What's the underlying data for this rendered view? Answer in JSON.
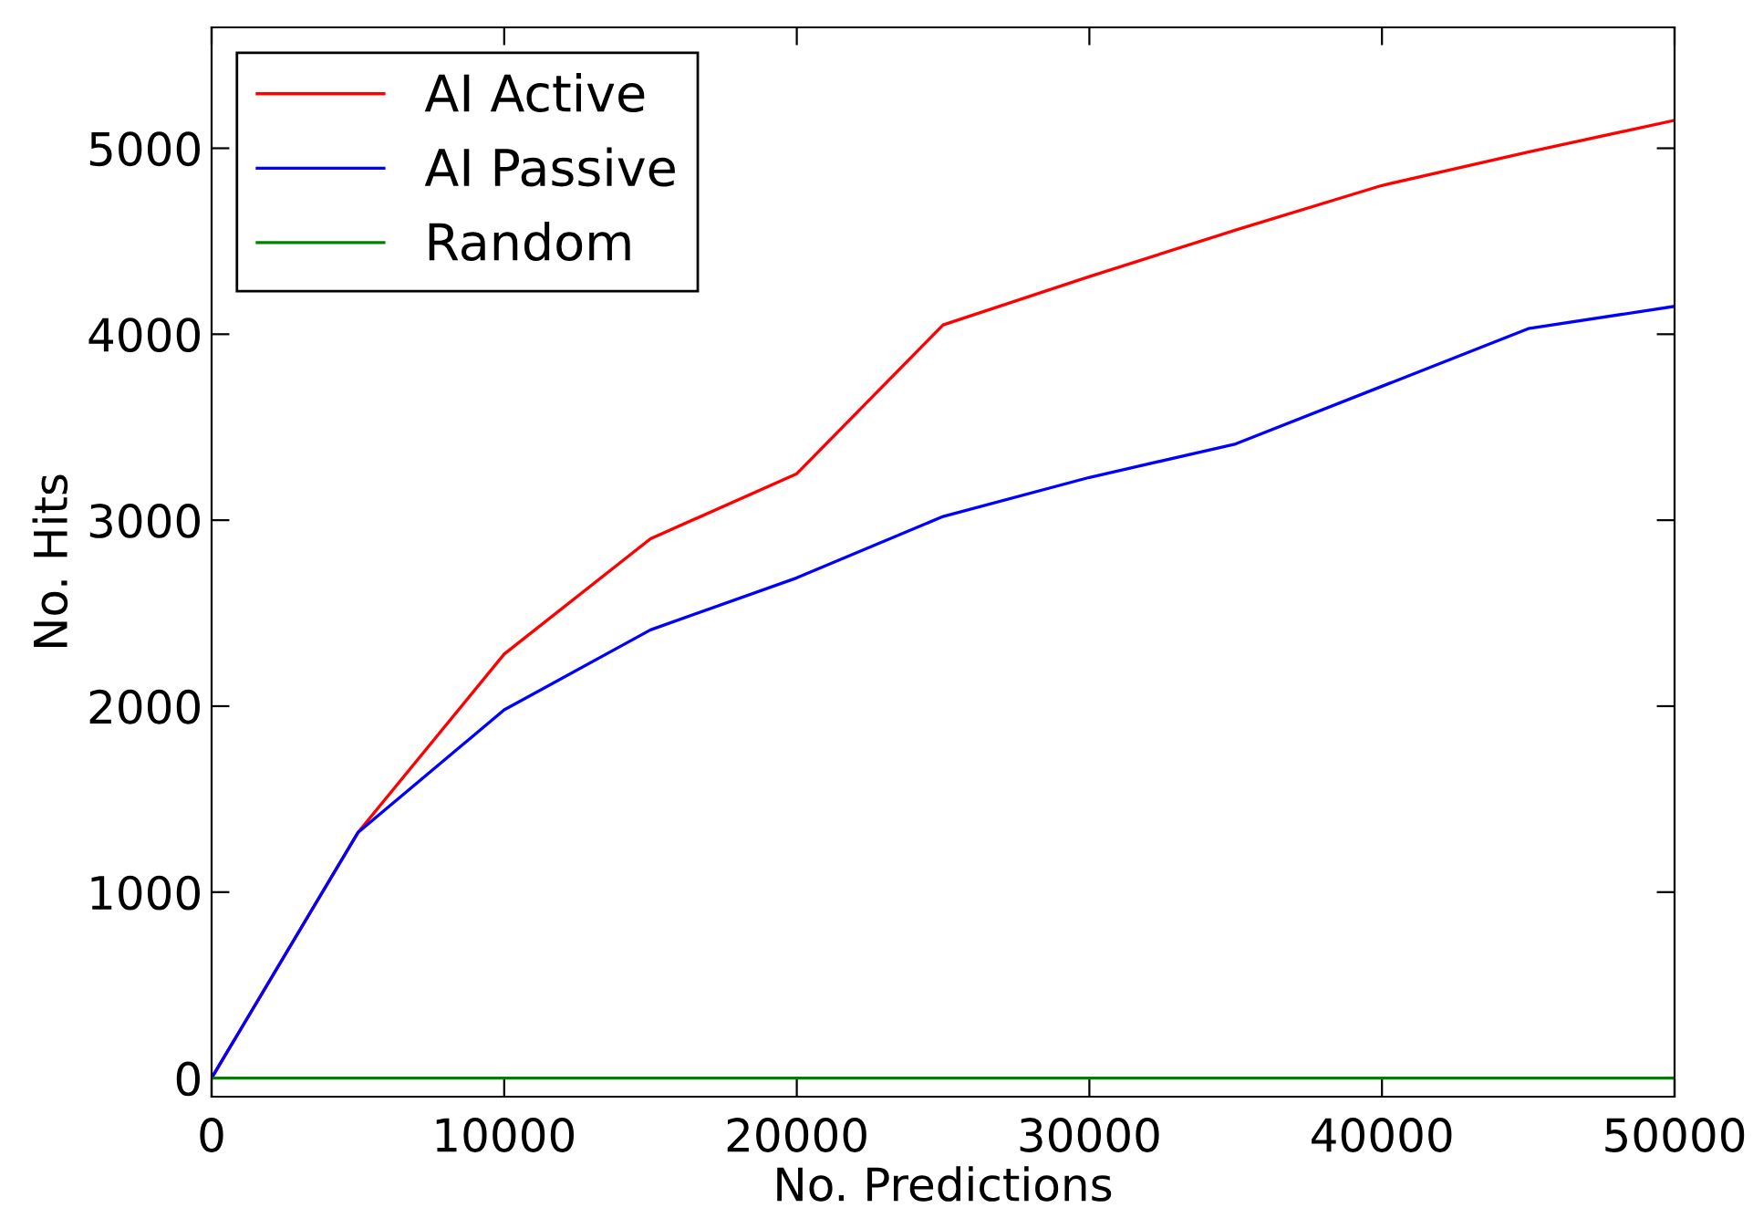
{
  "chart_data": {
    "type": "line",
    "xlabel": "No. Predictions",
    "ylabel": "No. Hits",
    "x": [
      0,
      5000,
      10000,
      15000,
      20000,
      25000,
      30000,
      35000,
      40000,
      45000,
      50000
    ],
    "series": [
      {
        "name": "AI Active",
        "color": "#ff0000",
        "values": [
          0,
          1320,
          2280,
          2900,
          3250,
          4050,
          4310,
          4560,
          4800,
          4980,
          5150
        ]
      },
      {
        "name": "AI Passive",
        "color": "#0000ff",
        "values": [
          0,
          1320,
          1980,
          2410,
          2690,
          3020,
          3230,
          3410,
          3720,
          4030,
          4150
        ]
      },
      {
        "name": "Random",
        "color": "#008000",
        "values": [
          0,
          0,
          0,
          0,
          0,
          0,
          0,
          0,
          0,
          0,
          0
        ]
      }
    ],
    "xlim": [
      0,
      50000
    ],
    "ylim": [
      -100,
      5650
    ],
    "xticks": [
      0,
      10000,
      20000,
      30000,
      40000,
      50000
    ],
    "yticks": [
      0,
      1000,
      2000,
      3000,
      4000,
      5000
    ],
    "grid": false,
    "legend": "top left",
    "marker": "none",
    "line_style": "solid"
  }
}
